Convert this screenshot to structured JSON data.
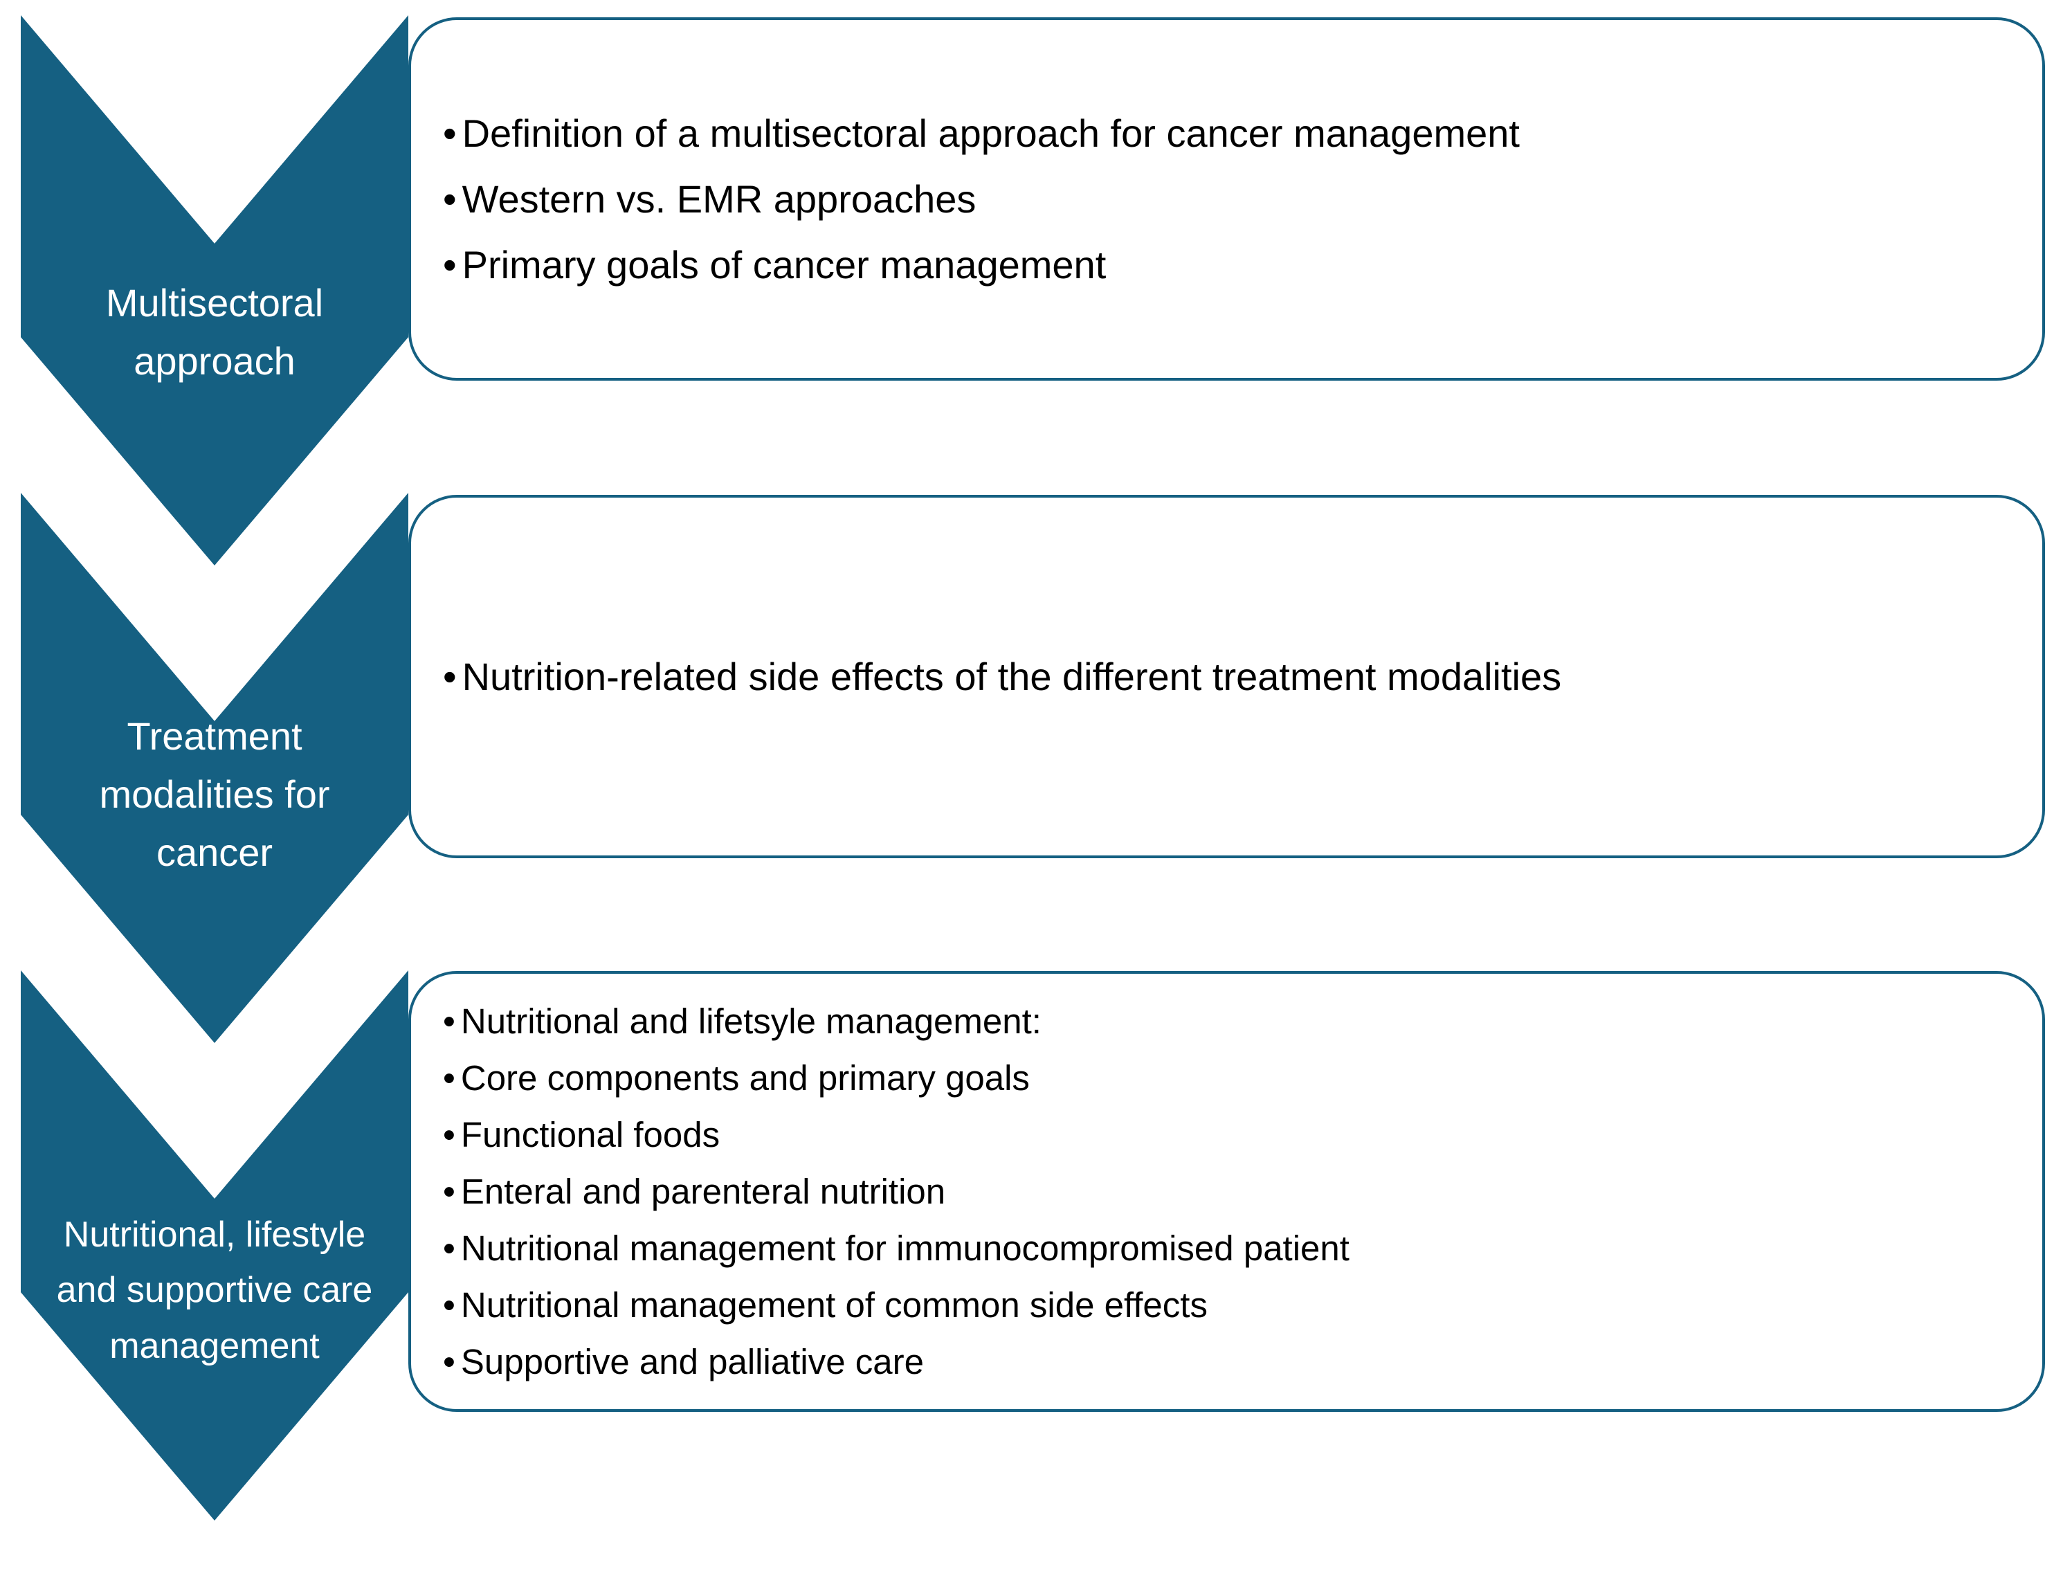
{
  "diagram": {
    "accent_color": "#156082",
    "background_color": "#ffffff",
    "label_text_color": "#ffffff",
    "bullet_text_color": "#000000",
    "bullet_char": "•",
    "rows": [
      {
        "chevron_label": "Multisectoral approach",
        "bullets": [
          "Definition of a multisectoral approach for cancer management",
          "Western vs. EMR approaches",
          "Primary goals of cancer management"
        ]
      },
      {
        "chevron_label": "Treatment modalities for cancer",
        "bullets": [
          "Nutrition-related side effects of the different treatment modalities"
        ]
      },
      {
        "chevron_label": "Nutritional, lifestyle and supportive care management",
        "bullets": [
          "Nutritional and lifetsyle management:",
          "Core components and primary goals",
          "Functional foods",
          "Enteral and parenteral nutrition",
          "Nutritional management for immunocompromised patient",
          "Nutritional management of common side effects",
          "Supportive and palliative care"
        ]
      }
    ]
  }
}
